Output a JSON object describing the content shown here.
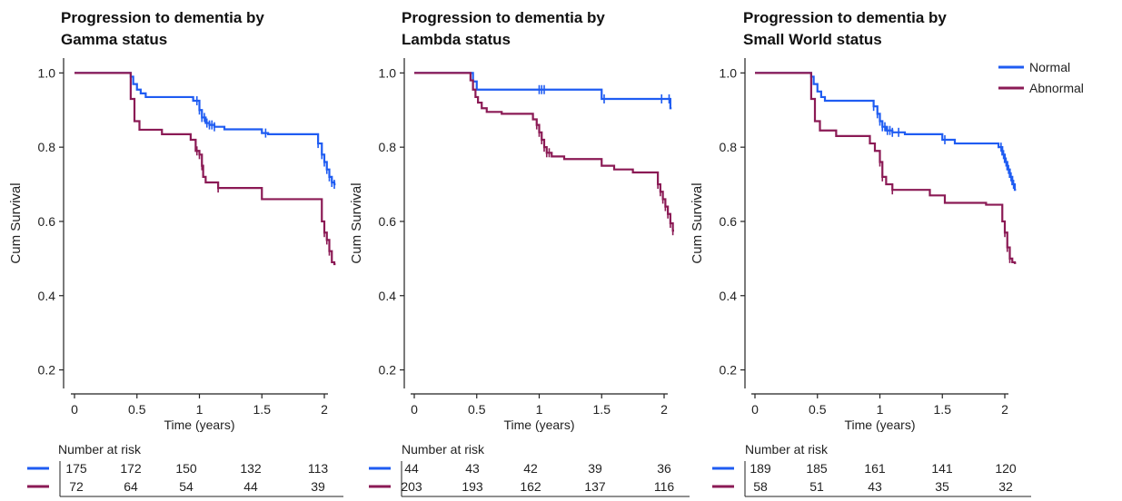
{
  "legend": {
    "placement": "top-right",
    "entries": [
      {
        "label": "Normal",
        "color": "#1f5cf2"
      },
      {
        "label": "Abnormal",
        "color": "#8b1a55"
      }
    ]
  },
  "chart_data": [
    {
      "type": "line",
      "subtype": "kaplan-meier",
      "title_lines": [
        "Progression to dementia by",
        "Gamma status"
      ],
      "xlabel": "Time (years)",
      "ylabel": "Cum Survival",
      "xlim": [
        -0.05,
        2.1
      ],
      "ylim": [
        0.15,
        1.04
      ],
      "x_ticks": [
        0,
        0.5,
        1,
        1.5,
        2
      ],
      "x_tick_labels": [
        "0",
        "0.5",
        "1",
        "1.5",
        "2"
      ],
      "y_ticks": [
        0.2,
        0.4,
        0.6,
        0.8,
        1.0
      ],
      "y_tick_labels": [
        "0.2",
        "0.4",
        "0.6",
        "0.8",
        "1.0"
      ],
      "grid": false,
      "series": [
        {
          "name": "Normal",
          "color": "#1f5cf2",
          "steps": [
            [
              0,
              1.0
            ],
            [
              0.45,
              0.99
            ],
            [
              0.47,
              0.97
            ],
            [
              0.5,
              0.955
            ],
            [
              0.53,
              0.945
            ],
            [
              0.57,
              0.935
            ],
            [
              0.95,
              0.925
            ],
            [
              1.0,
              0.9
            ],
            [
              1.02,
              0.88
            ],
            [
              1.05,
              0.865
            ],
            [
              1.08,
              0.86
            ],
            [
              1.12,
              0.855
            ],
            [
              1.2,
              0.848
            ],
            [
              1.5,
              0.838
            ],
            [
              1.55,
              0.835
            ],
            [
              1.58,
              0.835
            ],
            [
              1.95,
              0.81
            ],
            [
              1.98,
              0.78
            ],
            [
              2.0,
              0.76
            ],
            [
              2.02,
              0.74
            ],
            [
              2.04,
              0.72
            ],
            [
              2.06,
              0.705
            ],
            [
              2.08,
              0.7
            ]
          ],
          "censor": [
            0.98,
            1.0,
            1.02,
            1.04,
            1.06,
            1.08,
            1.1,
            1.12,
            1.53,
            1.95,
            1.98,
            2.0,
            2.02,
            2.04,
            2.06,
            2.08
          ]
        },
        {
          "name": "Abnormal",
          "color": "#8b1a55",
          "steps": [
            [
              0,
              1.0
            ],
            [
              0.45,
              0.93
            ],
            [
              0.48,
              0.87
            ],
            [
              0.52,
              0.847
            ],
            [
              0.7,
              0.835
            ],
            [
              0.93,
              0.82
            ],
            [
              0.97,
              0.79
            ],
            [
              1.0,
              0.78
            ],
            [
              1.02,
              0.75
            ],
            [
              1.03,
              0.72
            ],
            [
              1.05,
              0.705
            ],
            [
              1.15,
              0.69
            ],
            [
              1.5,
              0.66
            ],
            [
              1.98,
              0.6
            ],
            [
              2.0,
              0.57
            ],
            [
              2.02,
              0.55
            ],
            [
              2.04,
              0.52
            ],
            [
              2.06,
              0.49
            ],
            [
              2.08,
              0.485
            ]
          ],
          "censor": [
            0.98,
            1.0,
            1.02,
            1.15,
            2.0,
            2.02,
            2.04
          ]
        }
      ],
      "risk_table": {
        "header": "Number at risk",
        "rows": [
          {
            "series": "Normal",
            "values": [
              "175",
              "172",
              "150",
              "132",
              "113"
            ]
          },
          {
            "series": "Abnormal",
            "values": [
              "72",
              "64",
              "54",
              "44",
              "39"
            ]
          }
        ]
      }
    },
    {
      "type": "line",
      "subtype": "kaplan-meier",
      "title_lines": [
        "Progression to dementia by",
        "Lambda status"
      ],
      "xlabel": "Time (years)",
      "ylabel": "Cum Survival",
      "xlim": [
        -0.05,
        2.1
      ],
      "ylim": [
        0.15,
        1.04
      ],
      "x_ticks": [
        0,
        0.5,
        1,
        1.5,
        2
      ],
      "x_tick_labels": [
        "0",
        "0.5",
        "1",
        "1.5",
        "2"
      ],
      "y_ticks": [
        0.2,
        0.4,
        0.6,
        0.8,
        1.0
      ],
      "y_tick_labels": [
        "0.2",
        "0.4",
        "0.6",
        "0.8",
        "1.0"
      ],
      "grid": false,
      "series": [
        {
          "name": "Normal",
          "color": "#1f5cf2",
          "steps": [
            [
              0,
              1.0
            ],
            [
              0.47,
              0.977
            ],
            [
              0.5,
              0.955
            ],
            [
              1.5,
              0.93
            ],
            [
              2.05,
              0.905
            ]
          ],
          "censor": [
            1.0,
            1.02,
            1.04,
            1.52,
            1.98,
            2.04
          ]
        },
        {
          "name": "Abnormal",
          "color": "#8b1a55",
          "steps": [
            [
              0,
              1.0
            ],
            [
              0.45,
              0.98
            ],
            [
              0.47,
              0.955
            ],
            [
              0.49,
              0.935
            ],
            [
              0.51,
              0.92
            ],
            [
              0.54,
              0.905
            ],
            [
              0.58,
              0.895
            ],
            [
              0.7,
              0.89
            ],
            [
              0.95,
              0.875
            ],
            [
              0.98,
              0.86
            ],
            [
              1.0,
              0.84
            ],
            [
              1.02,
              0.82
            ],
            [
              1.04,
              0.8
            ],
            [
              1.06,
              0.785
            ],
            [
              1.1,
              0.775
            ],
            [
              1.2,
              0.768
            ],
            [
              1.5,
              0.75
            ],
            [
              1.6,
              0.74
            ],
            [
              1.75,
              0.732
            ],
            [
              1.95,
              0.7
            ],
            [
              1.97,
              0.68
            ],
            [
              1.99,
              0.66
            ],
            [
              2.01,
              0.64
            ],
            [
              2.03,
              0.62
            ],
            [
              2.05,
              0.595
            ],
            [
              2.07,
              0.575
            ]
          ],
          "censor": [
            0.98,
            1.0,
            1.02,
            1.04,
            1.06,
            1.08,
            1.95,
            1.97,
            1.99,
            2.01,
            2.03,
            2.05,
            2.07
          ]
        }
      ],
      "risk_table": {
        "header": "Number at risk",
        "rows": [
          {
            "series": "Normal",
            "values": [
              "44",
              "43",
              "42",
              "39",
              "36"
            ]
          },
          {
            "series": "Abnormal",
            "values": [
              "203",
              "193",
              "162",
              "137",
              "116"
            ]
          }
        ]
      }
    },
    {
      "type": "line",
      "subtype": "kaplan-meier",
      "title_lines": [
        "Progression to dementia by",
        "Small World status"
      ],
      "xlabel": "Time (years)",
      "ylabel": "Cum Survival",
      "xlim": [
        -0.05,
        2.1
      ],
      "ylim": [
        0.15,
        1.04
      ],
      "x_ticks": [
        0,
        0.5,
        1,
        1.5,
        2
      ],
      "x_tick_labels": [
        "0",
        "0.5",
        "1",
        "1.5",
        "2"
      ],
      "y_ticks": [
        0.2,
        0.4,
        0.6,
        0.8,
        1.0
      ],
      "y_tick_labels": [
        "0.2",
        "0.4",
        "0.6",
        "0.8",
        "1.0"
      ],
      "grid": false,
      "series": [
        {
          "name": "Normal",
          "color": "#1f5cf2",
          "steps": [
            [
              0,
              1.0
            ],
            [
              0.45,
              0.99
            ],
            [
              0.47,
              0.97
            ],
            [
              0.5,
              0.95
            ],
            [
              0.53,
              0.935
            ],
            [
              0.56,
              0.925
            ],
            [
              0.95,
              0.91
            ],
            [
              0.98,
              0.89
            ],
            [
              1.0,
              0.87
            ],
            [
              1.02,
              0.855
            ],
            [
              1.05,
              0.845
            ],
            [
              1.1,
              0.84
            ],
            [
              1.2,
              0.835
            ],
            [
              1.5,
              0.82
            ],
            [
              1.6,
              0.81
            ],
            [
              1.95,
              0.8
            ],
            [
              1.98,
              0.78
            ],
            [
              2.0,
              0.76
            ],
            [
              2.02,
              0.74
            ],
            [
              2.04,
              0.72
            ],
            [
              2.06,
              0.7
            ],
            [
              2.08,
              0.685
            ]
          ],
          "censor": [
            0.95,
            0.98,
            1.0,
            1.02,
            1.04,
            1.06,
            1.08,
            1.1,
            1.15,
            1.52,
            1.97,
            1.99,
            2.01,
            2.03,
            2.05,
            2.07
          ]
        },
        {
          "name": "Abnormal",
          "color": "#8b1a55",
          "steps": [
            [
              0,
              1.0
            ],
            [
              0.45,
              0.93
            ],
            [
              0.48,
              0.87
            ],
            [
              0.52,
              0.845
            ],
            [
              0.65,
              0.83
            ],
            [
              0.92,
              0.81
            ],
            [
              0.96,
              0.79
            ],
            [
              1.0,
              0.76
            ],
            [
              1.02,
              0.72
            ],
            [
              1.05,
              0.7
            ],
            [
              1.1,
              0.685
            ],
            [
              1.4,
              0.67
            ],
            [
              1.52,
              0.65
            ],
            [
              1.85,
              0.645
            ],
            [
              1.98,
              0.6
            ],
            [
              2.0,
              0.57
            ],
            [
              2.02,
              0.53
            ],
            [
              2.04,
              0.5
            ],
            [
              2.06,
              0.49
            ],
            [
              2.08,
              0.488
            ]
          ],
          "censor": [
            1.0,
            1.02,
            1.1,
            2.0,
            2.02,
            2.04
          ]
        }
      ],
      "risk_table": {
        "header": "Number at risk",
        "rows": [
          {
            "series": "Normal",
            "values": [
              "189",
              "185",
              "161",
              "141",
              "120"
            ]
          },
          {
            "series": "Abnormal",
            "values": [
              "58",
              "51",
              "43",
              "35",
              "32"
            ]
          }
        ]
      }
    }
  ]
}
